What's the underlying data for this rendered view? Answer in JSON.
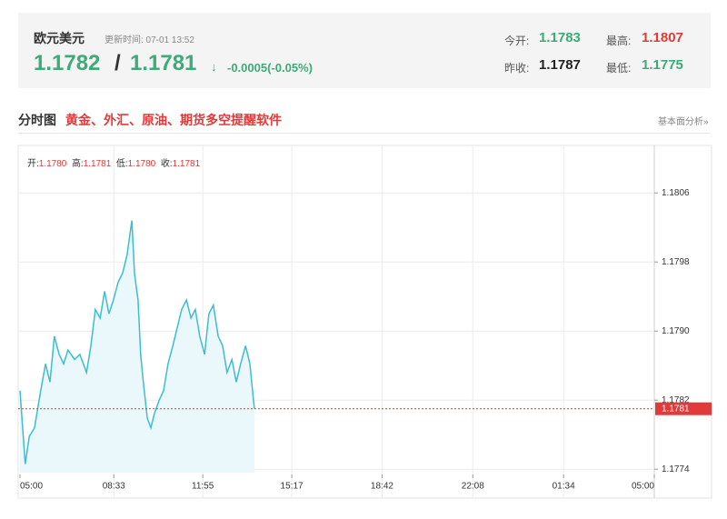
{
  "header": {
    "title": "欧元美元",
    "update_time": "更新时间: 07-01 13:52",
    "bid": "1.1782",
    "separator": "/",
    "ask": "1.1781",
    "arrow": "↓",
    "change": "-0.0005(-0.05%)",
    "stats": [
      {
        "label": "今开:",
        "value": "1.1783"
      },
      {
        "label": "最高:",
        "value": "1.1807"
      },
      {
        "label": "昨收:",
        "value": "1.1787"
      },
      {
        "label": "最低:",
        "value": "1.1775"
      }
    ]
  },
  "section": {
    "title": "分时图",
    "promo": "黄金、外汇、原油、期货多空提醒软件",
    "link": "基本面分析»"
  },
  "info": [
    {
      "label": "开:",
      "value": "1.1780"
    },
    {
      "label": "高:",
      "value": "1.1781"
    },
    {
      "label": "低:",
      "value": "1.1780"
    },
    {
      "label": "收:",
      "value": "1.1781"
    }
  ],
  "chart_data": {
    "type": "area",
    "x": [
      0,
      6,
      12,
      21,
      33,
      47,
      58,
      68,
      78,
      89,
      99,
      109,
      124,
      136,
      151,
      161,
      171,
      182,
      192,
      202,
      212,
      223,
      233,
      243,
      254,
      260,
      268,
      274,
      280,
      289,
      297,
      305,
      316,
      326,
      336,
      347,
      357,
      367,
      378,
      388,
      398,
      408,
      419,
      429,
      439,
      450,
      460,
      470,
      481,
      491,
      501,
      512,
      522,
      528,
      532
    ],
    "series": [
      {
        "color": "#3dbdd0",
        "values": [
          1.17831,
          1.17788,
          1.17746,
          1.17778,
          1.17788,
          1.17831,
          1.17862,
          1.17841,
          1.17894,
          1.17873,
          1.17862,
          1.17878,
          1.17867,
          1.17873,
          1.17852,
          1.17883,
          1.17925,
          1.17915,
          1.17946,
          1.1792,
          1.17936,
          1.17957,
          1.17967,
          1.17988,
          1.18028,
          1.17967,
          1.17936,
          1.17873,
          1.17841,
          1.17799,
          1.17788,
          1.17804,
          1.1782,
          1.17831,
          1.17862,
          1.17883,
          1.17904,
          1.17925,
          1.17936,
          1.17915,
          1.17925,
          1.17894,
          1.17873,
          1.1792,
          1.1793,
          1.17894,
          1.17883,
          1.17852,
          1.17867,
          1.17841,
          1.17862,
          1.17883,
          1.17862,
          1.17831,
          1.1781
        ]
      }
    ],
    "xlim": [
      0,
      1440
    ],
    "xticks": [
      {
        "value": 0,
        "label": "05:00"
      },
      {
        "value": 213,
        "label": "08:33"
      },
      {
        "value": 415,
        "label": "11:55"
      },
      {
        "value": 617,
        "label": "15:17"
      },
      {
        "value": 822,
        "label": "18:42"
      },
      {
        "value": 1028,
        "label": "22:08"
      },
      {
        "value": 1234,
        "label": "01:34"
      },
      {
        "value": 1440,
        "label": "05:00"
      }
    ],
    "ylim": [
      1.17736,
      1.18115
    ],
    "yticks": [
      1.1774,
      1.1782,
      {
        "value": 1.179,
        "label": "1.1790"
      },
      1.1798,
      1.1806
    ],
    "last_price": 1.1781,
    "grid": true
  }
}
